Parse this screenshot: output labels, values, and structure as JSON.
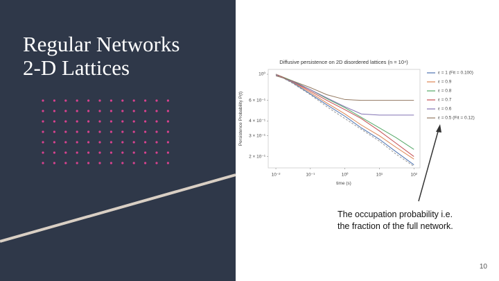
{
  "slide": {
    "title_lines": [
      "Regular Networks",
      "2-D Lattices"
    ],
    "caption_lines": [
      "The occupation probability i.e.",
      "the fraction of the full network."
    ],
    "page_number": "10"
  },
  "chart_data": {
    "type": "line",
    "title": "Diffusive persistence on 2D disordered lattices (n = 10⁴)",
    "x_label": "time (s)",
    "y_label": "Persistence Probability P(t)",
    "x": [
      0.01,
      0.03,
      0.1,
      0.3,
      1,
      3,
      10,
      30,
      100
    ],
    "series": [
      {
        "name": "ε = 1 (Fit = 0.100)",
        "color": "#4c72b0",
        "values": [
          1,
          0.85,
          0.68,
          0.55,
          0.44,
          0.35,
          0.28,
          0.22,
          0.17
        ]
      },
      {
        "name": "ε = 0.9",
        "color": "#dd8452",
        "values": [
          1,
          0.86,
          0.7,
          0.57,
          0.46,
          0.37,
          0.3,
          0.24,
          0.19
        ]
      },
      {
        "name": "ε = 0.8",
        "color": "#55a868",
        "values": [
          1,
          0.88,
          0.74,
          0.62,
          0.52,
          0.43,
          0.35,
          0.29,
          0.23
        ]
      },
      {
        "name": "ε = 0.7",
        "color": "#c44e52",
        "values": [
          1,
          0.87,
          0.72,
          0.6,
          0.5,
          0.42,
          0.33,
          0.26,
          0.2
        ]
      },
      {
        "name": "ε = 0.6",
        "color": "#8172b3",
        "values": [
          0.98,
          0.87,
          0.74,
          0.63,
          0.53,
          0.46,
          0.45,
          0.45,
          0.45
        ]
      },
      {
        "name": "ε = 0.5 (Fit = 0.12)",
        "color": "#937860",
        "values": [
          0.97,
          0.88,
          0.77,
          0.67,
          0.61,
          0.6,
          0.6,
          0.6,
          0.6
        ]
      },
      {
        "color": "#999999",
        "dashed": true,
        "values": [
          1,
          0.84,
          0.67,
          0.53,
          0.42,
          0.34,
          0.27,
          0.21,
          0.165
        ]
      }
    ],
    "log_x": true,
    "log_y": true,
    "xlim": [
      0.006,
      150
    ],
    "ylim": [
      0.16,
      1.1
    ],
    "xticks": [
      {
        "value": 0.01,
        "label": "10⁻²"
      },
      {
        "value": 0.1,
        "label": "10⁻¹"
      },
      {
        "value": 1,
        "label": "10⁰"
      },
      {
        "value": 10,
        "label": "10¹"
      },
      {
        "value": 100,
        "label": "10²"
      }
    ],
    "yticks": [
      {
        "value": 1,
        "label": "10⁰"
      },
      {
        "value": 0.6,
        "label": "6 × 10⁻¹"
      },
      {
        "value": 0.4,
        "label": "4 × 10⁻¹"
      },
      {
        "value": 0.3,
        "label": "3 × 10⁻¹"
      },
      {
        "value": 0.2,
        "label": "2 × 10⁻¹"
      }
    ],
    "grid": false
  }
}
